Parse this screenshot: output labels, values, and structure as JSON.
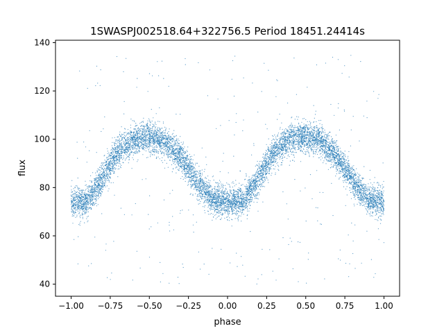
{
  "chart_data": {
    "type": "scatter",
    "title": "1SWASPJ002518.64+322756.5 Period 18451.24414s",
    "xlabel": "phase",
    "ylabel": "flux",
    "xlim": [
      -1.1,
      1.1
    ],
    "ylim": [
      35,
      141
    ],
    "xticks": [
      -1.0,
      -0.75,
      -0.5,
      -0.25,
      0.0,
      0.25,
      0.5,
      0.75,
      1.0
    ],
    "xtick_labels": [
      "−1.00",
      "−0.75",
      "−0.50",
      "−0.25",
      "0.00",
      "0.25",
      "0.50",
      "0.75",
      "1.00"
    ],
    "yticks": [
      40,
      60,
      80,
      100,
      120,
      140
    ],
    "ytick_labels": [
      "40",
      "60",
      "80",
      "100",
      "120",
      "140"
    ],
    "grid": false,
    "point_color": "#1f77b4",
    "profile": {
      "description_of_shape": "periodic light curve folded on phase -1..1",
      "phase": [
        -1.0,
        -0.9,
        -0.8,
        -0.7,
        -0.6,
        -0.5,
        -0.4,
        -0.3,
        -0.2,
        -0.1,
        0.0,
        0.1,
        0.2,
        0.3,
        0.4,
        0.5,
        0.6,
        0.7,
        0.8,
        0.9,
        1.0
      ],
      "flux": [
        74,
        74,
        84,
        95,
        100,
        101,
        99,
        93,
        83,
        75,
        74,
        74,
        84,
        95,
        100,
        101,
        99,
        93,
        83,
        75,
        74
      ]
    },
    "band_spread": 5.0,
    "outlier_range": [
      40,
      136
    ]
  }
}
